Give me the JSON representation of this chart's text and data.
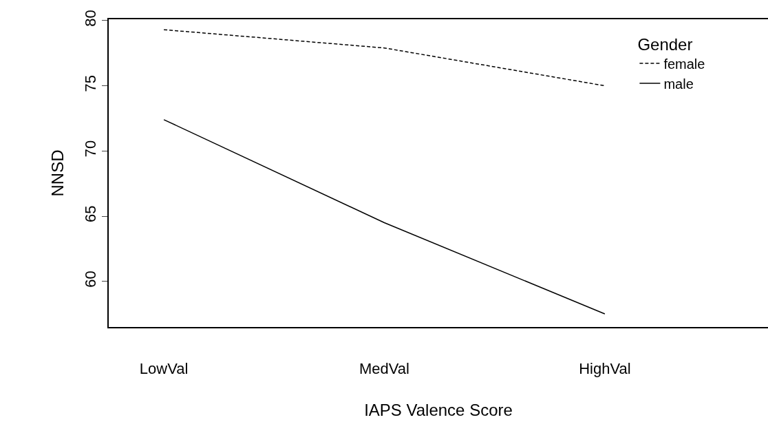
{
  "chart_data": {
    "type": "line",
    "xlabel": "IAPS Valence Score",
    "ylabel": "NNSD",
    "legend_title": "Gender",
    "categories": [
      "LowVal",
      "MedVal",
      "HighVal"
    ],
    "series": [
      {
        "name": "female",
        "color": "#000000",
        "line_style": "dashed",
        "values": [
          79.3,
          77.9,
          75.0
        ]
      },
      {
        "name": "male",
        "color": "#000000",
        "line_style": "solid",
        "values": [
          72.4,
          64.5,
          57.5
        ]
      }
    ],
    "ylim": [
      56.5,
      80.1
    ],
    "yticks": [
      60,
      65,
      70,
      75,
      80
    ],
    "grid": false,
    "legend": "top right",
    "marker": "none"
  }
}
